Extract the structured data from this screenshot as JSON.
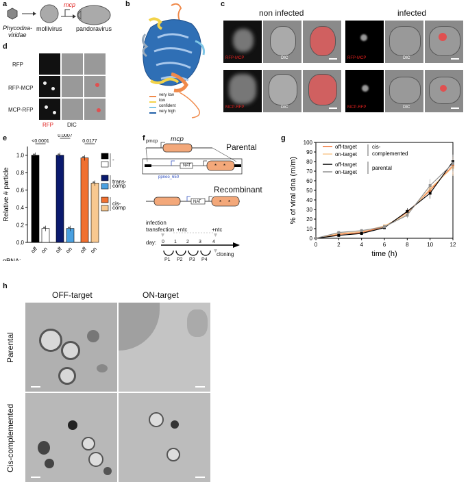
{
  "panel_a": {
    "label": "a",
    "phycodna": "Phycodna-",
    "viridae": "viridae",
    "mollivirus": "mollivirus",
    "mcp": "mcp",
    "pandoravirus": "pandoravirus"
  },
  "panel_b": {
    "label": "b",
    "legend": [
      "very low",
      "low",
      "confident",
      "very high"
    ],
    "legend_colors": [
      "#f08a4b",
      "#f3d34a",
      "#7fc6e6",
      "#1f5fa8"
    ]
  },
  "panel_c": {
    "label": "c",
    "non_infected": "non infected",
    "infected": "infected",
    "row1_fluor": "RFP-MCP",
    "row2_fluor": "MCP-RFP",
    "dic": "DIC"
  },
  "panel_d": {
    "label": "d",
    "rows": [
      "RFP",
      "RFP-MCP",
      "MCP-RFP"
    ],
    "col_rfp": "RFP",
    "col_dic": "DIC"
  },
  "panel_e": {
    "label": "e",
    "ylabel": "Relative # particle",
    "gRNA": "gRNA:",
    "pvals": [
      "<0.0001",
      "0.0007",
      "0.0177"
    ],
    "legend_minus": "-",
    "legend_trans": "trans-",
    "legend_trans2": "comp",
    "legend_cis": "cis-",
    "legend_cis2": "comp"
  },
  "chart_data": [
    {
      "type": "bar",
      "categories": [
        "off",
        "on",
        "off",
        "on",
        "off",
        "on"
      ],
      "groups": [
        "-",
        "trans-comp",
        "cis-comp"
      ],
      "values": [
        1.0,
        0.16,
        1.0,
        0.16,
        0.97,
        0.68
      ],
      "ylabel": "Relative # particle",
      "ylim": [
        0,
        1.1
      ],
      "yticks": [
        0.0,
        0.2,
        0.4,
        0.6,
        0.8,
        1.0
      ],
      "colors": [
        "#000000",
        "#ffffff",
        "#0a1a6e",
        "#4aa0e0",
        "#f07030",
        "#f8c890"
      ]
    },
    {
      "type": "line",
      "x": [
        0,
        2,
        4,
        6,
        8,
        10,
        12
      ],
      "xlabel": "time (h)",
      "ylabel": "% of viral dna (m/m)",
      "xlim": [
        0,
        12
      ],
      "ylim": [
        0,
        100
      ],
      "xticks": [
        0,
        2,
        4,
        6,
        8,
        10,
        12
      ],
      "yticks": [
        0,
        10,
        20,
        30,
        40,
        50,
        60,
        70,
        80,
        90,
        100
      ],
      "series": [
        {
          "name": "off-target",
          "group": "cis-complemented",
          "color": "#f07030",
          "values": [
            0,
            4,
            6,
            12,
            27,
            50,
            76
          ]
        },
        {
          "name": "on-target",
          "group": "cis-complemented",
          "color": "#f8c890",
          "values": [
            0,
            5,
            7,
            13,
            25,
            52,
            74
          ]
        },
        {
          "name": "off-target",
          "group": "parental",
          "color": "#000000",
          "values": [
            0,
            3,
            5,
            11,
            28,
            47,
            80
          ]
        },
        {
          "name": "on-target",
          "group": "parental",
          "color": "#909090",
          "values": [
            0,
            6,
            8,
            12,
            24,
            55,
            78
          ]
        }
      ]
    }
  ],
  "panel_f": {
    "label": "f",
    "pmcp": "pmcp",
    "mcp": "mcp",
    "parental": "Parental",
    "nat": "NAT",
    "ppneo": "ppneo_650",
    "recombinant": "Recombinant",
    "infection": "infection",
    "transfection": "transfection",
    "ntc1": "+ntc",
    "ntc2": "+ntc",
    "day": "day:",
    "days": [
      "0",
      "1",
      "2",
      "3",
      "4"
    ],
    "passages": [
      "P1",
      "P2",
      "P3",
      "P4"
    ],
    "cloning": "cloning"
  },
  "panel_g": {
    "label": "g",
    "legend": [
      "off-target",
      "on-target",
      "off-target",
      "on-target"
    ],
    "group1a": "cis-",
    "group1b": "complemented",
    "group2": "parental"
  },
  "panel_h": {
    "label": "h",
    "off_target": "OFF-target",
    "on_target": "ON-target",
    "parental": "Parental",
    "cis": "Cis-complemented"
  }
}
